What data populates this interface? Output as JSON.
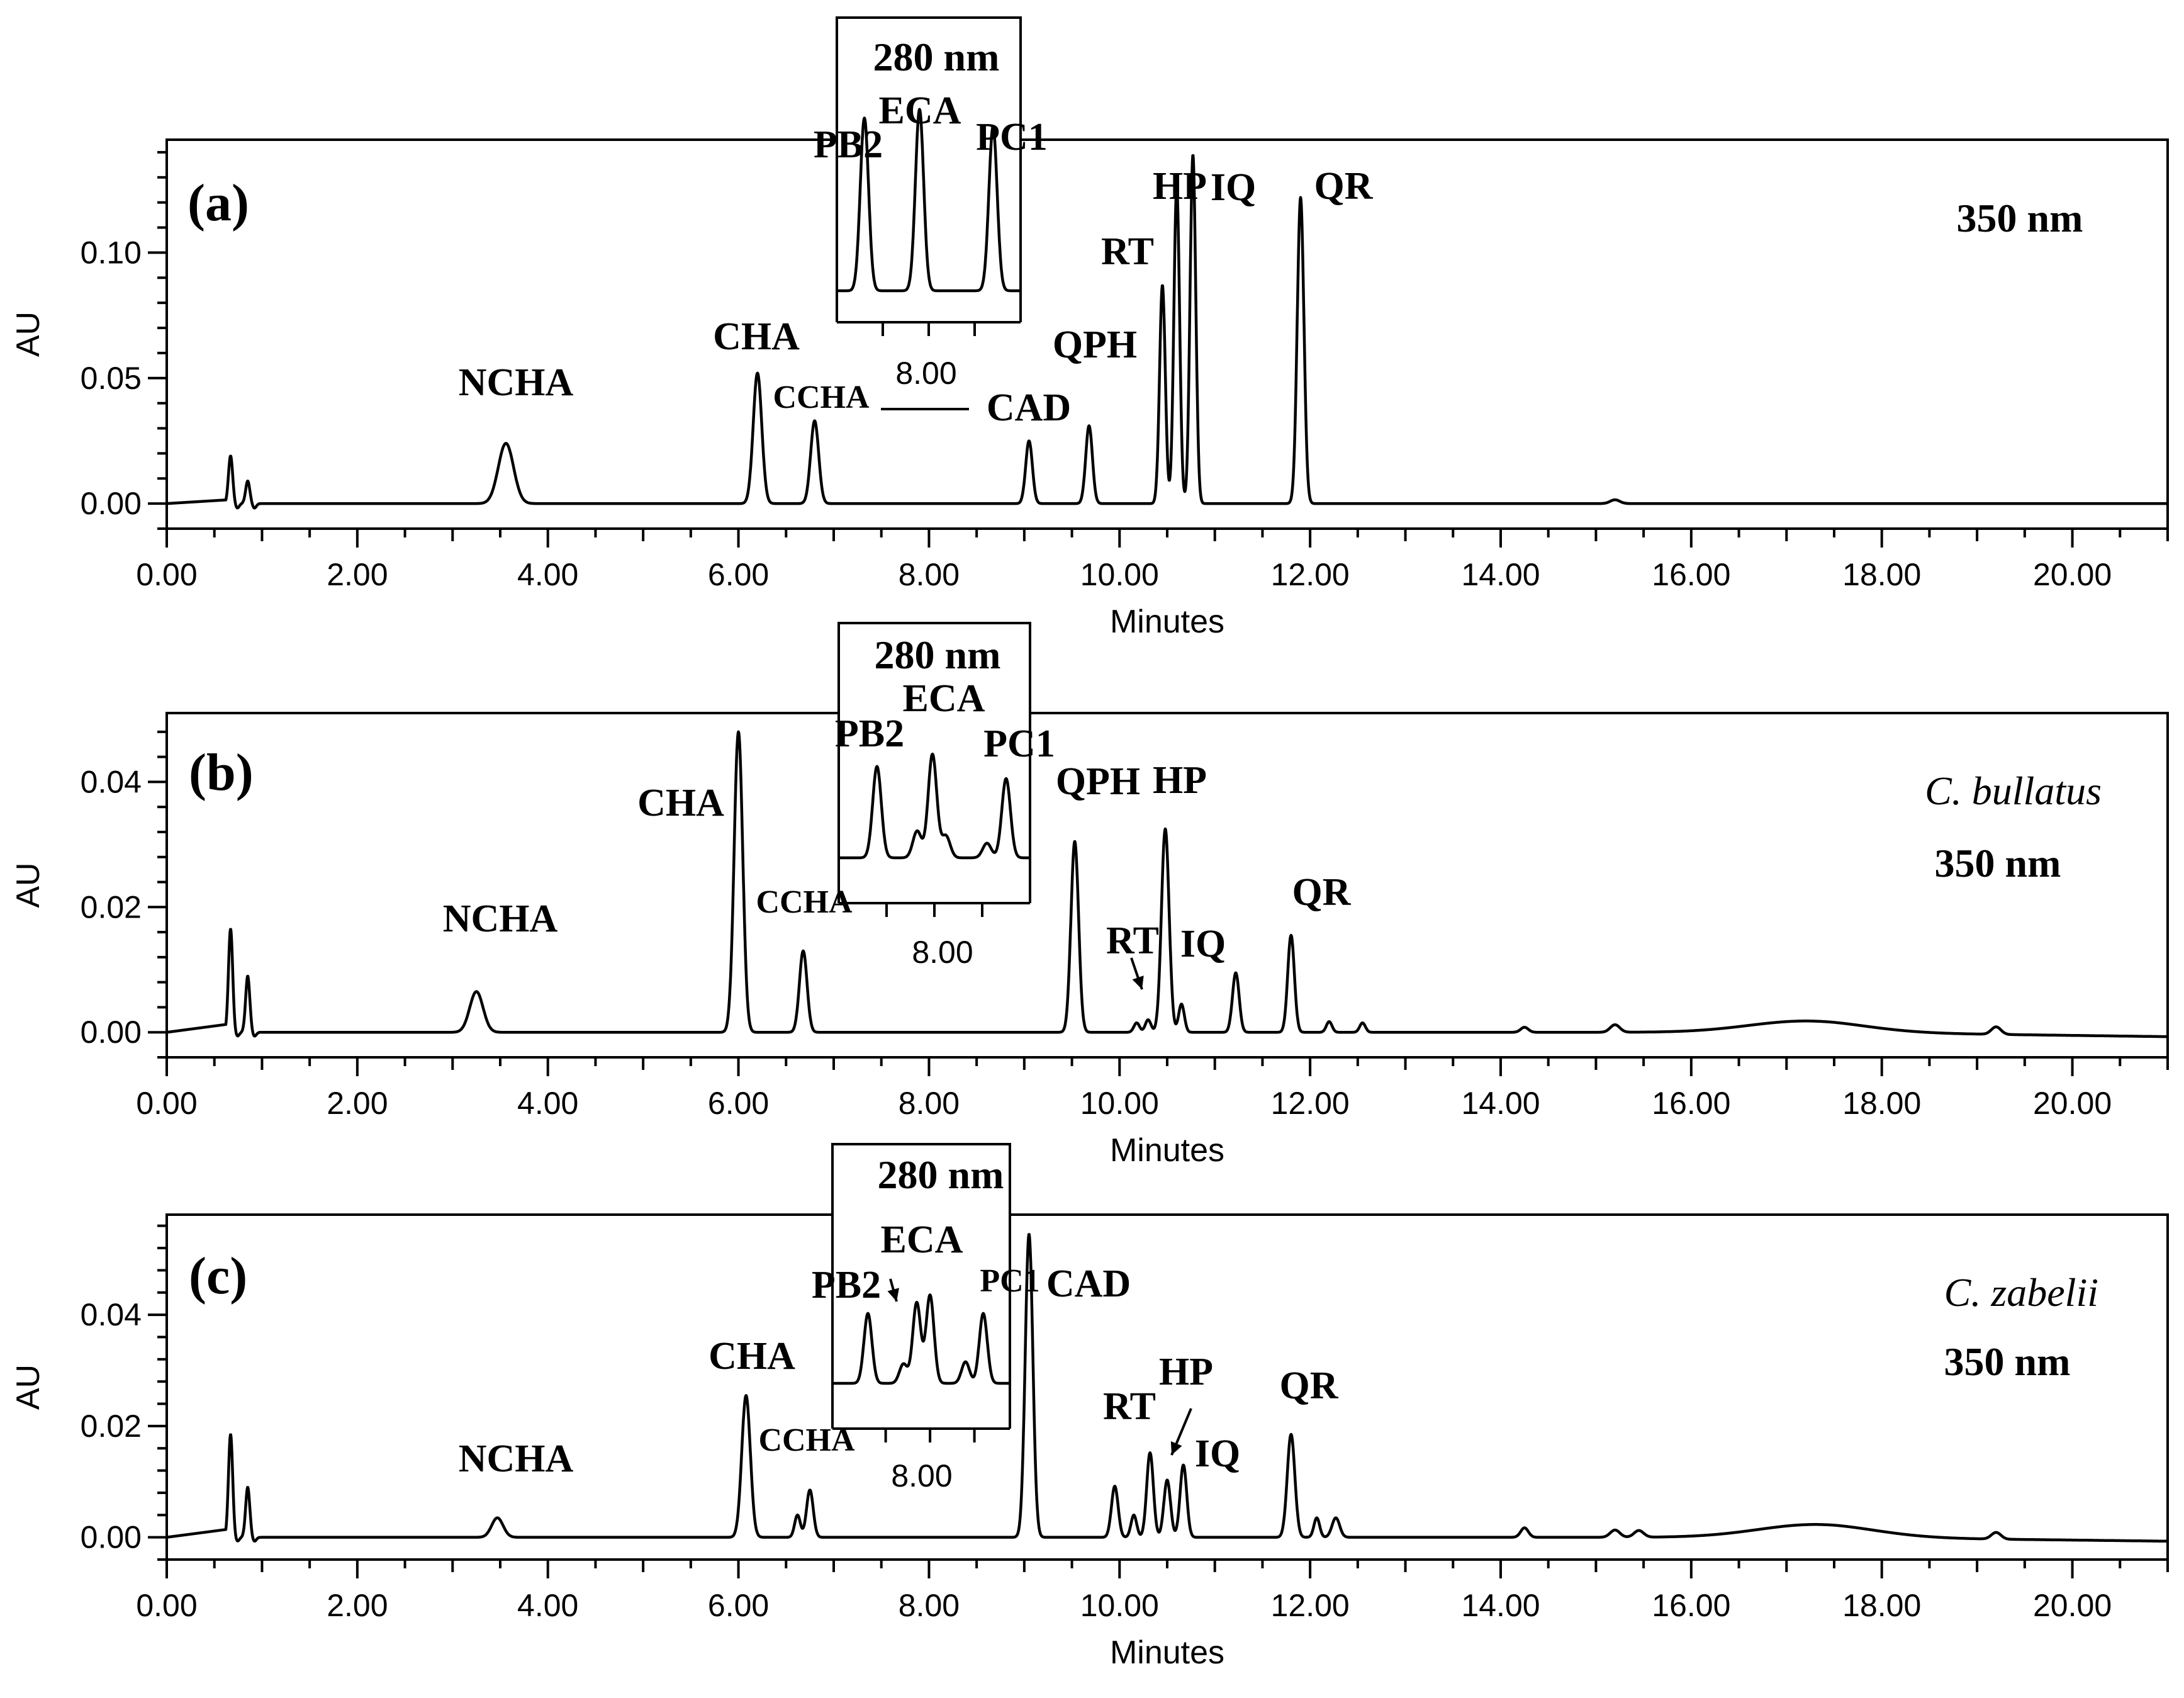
{
  "chart_data": [
    {
      "type": "line",
      "panel_label": "(a)",
      "wavelength": "350 nm",
      "species": "",
      "xlabel": "Minutes",
      "ylabel": "AU",
      "xlim": [
        0,
        21
      ],
      "ylim": [
        -0.01,
        0.145
      ],
      "x_ticks": [
        "0.00",
        "2.00",
        "4.00",
        "6.00",
        "8.00",
        "10.00",
        "12.00",
        "14.00",
        "16.00",
        "18.00",
        "20.00"
      ],
      "y_ticks": [
        {
          "value": 0.0,
          "label": "0.00"
        },
        {
          "value": 0.05,
          "label": "0.05"
        },
        {
          "value": 0.1,
          "label": "0.10"
        }
      ],
      "peaks": [
        {
          "label": "",
          "rt": 0.67,
          "height": 0.019,
          "width": 0.022
        },
        {
          "label": "",
          "rt": 0.85,
          "height": 0.009,
          "width": 0.022
        },
        {
          "label": "NCHA",
          "rt": 3.56,
          "height": 0.024,
          "width": 0.08
        },
        {
          "label": "CHA",
          "rt": 6.2,
          "height": 0.052,
          "width": 0.045
        },
        {
          "label": "CCHA",
          "rt": 6.8,
          "height": 0.033,
          "width": 0.042
        },
        {
          "label": "CAD",
          "rt": 9.05,
          "height": 0.025,
          "width": 0.035
        },
        {
          "label": "QPH",
          "rt": 9.68,
          "height": 0.031,
          "width": 0.035
        },
        {
          "label": "RT",
          "rt": 10.45,
          "height": 0.087,
          "width": 0.03
        },
        {
          "label": "HP",
          "rt": 10.6,
          "height": 0.126,
          "width": 0.03
        },
        {
          "label": "IQ",
          "rt": 10.77,
          "height": 0.139,
          "width": 0.03
        },
        {
          "label": "QR",
          "rt": 11.9,
          "height": 0.122,
          "width": 0.035
        },
        {
          "label": "",
          "rt": 15.2,
          "height": 0.0015,
          "width": 0.05
        }
      ],
      "inset": {
        "wavelength": "280 nm",
        "x_tick_label": "8.00",
        "peaks": [
          {
            "label": "PB2",
            "rt": 7.3,
            "height": 1.0
          },
          {
            "label": "ECA",
            "rt": 7.9,
            "height": 1.05
          },
          {
            "label": "PC1",
            "rt": 8.7,
            "height": 0.95
          }
        ],
        "minor_peaks": [],
        "outside_labels": [
          "CCHA"
        ]
      }
    },
    {
      "type": "line",
      "panel_label": "(b)",
      "wavelength": "350 nm",
      "species": "C. bullatus",
      "xlabel": "Minutes",
      "ylabel": "AU",
      "xlim": [
        0,
        21
      ],
      "ylim": [
        -0.004,
        0.051
      ],
      "x_ticks": [
        "0.00",
        "2.00",
        "4.00",
        "6.00",
        "8.00",
        "10.00",
        "12.00",
        "14.00",
        "16.00",
        "18.00",
        "20.00"
      ],
      "y_ticks": [
        {
          "value": 0.0,
          "label": "0.00"
        },
        {
          "value": 0.02,
          "label": "0.02"
        },
        {
          "value": 0.04,
          "label": "0.04"
        }
      ],
      "peaks": [
        {
          "label": "",
          "rt": 0.67,
          "height": 0.0165,
          "width": 0.022
        },
        {
          "label": "",
          "rt": 0.85,
          "height": 0.009,
          "width": 0.022
        },
        {
          "label": "NCHA",
          "rt": 3.25,
          "height": 0.0065,
          "width": 0.07
        },
        {
          "label": "CHA",
          "rt": 6.0,
          "height": 0.048,
          "width": 0.045
        },
        {
          "label": "CCHA",
          "rt": 6.68,
          "height": 0.013,
          "width": 0.04
        },
        {
          "label": "QPH",
          "rt": 9.53,
          "height": 0.0305,
          "width": 0.04
        },
        {
          "label": "",
          "rt": 10.18,
          "height": 0.0015,
          "width": 0.03
        },
        {
          "label": "RT",
          "rt": 10.3,
          "height": 0.002,
          "width": 0.03
        },
        {
          "label": "HP",
          "rt": 10.48,
          "height": 0.0325,
          "width": 0.04
        },
        {
          "label": "IQ",
          "rt": 10.65,
          "height": 0.0045,
          "width": 0.03
        },
        {
          "label": "",
          "rt": 11.22,
          "height": 0.0095,
          "width": 0.035
        },
        {
          "label": "QR",
          "rt": 11.8,
          "height": 0.0155,
          "width": 0.035
        },
        {
          "label": "",
          "rt": 12.2,
          "height": 0.0017,
          "width": 0.03
        },
        {
          "label": "",
          "rt": 12.55,
          "height": 0.0015,
          "width": 0.03
        },
        {
          "label": "",
          "rt": 14.25,
          "height": 0.0008,
          "width": 0.04
        },
        {
          "label": "",
          "rt": 15.2,
          "height": 0.0012,
          "width": 0.05
        },
        {
          "label": "",
          "rt": 17.2,
          "height": 0.0018,
          "width": 0.6
        },
        {
          "label": "",
          "rt": 19.2,
          "height": 0.0012,
          "width": 0.05
        }
      ],
      "inset": {
        "wavelength": "280 nm",
        "x_tick_label": "8.00",
        "peaks": [
          {
            "label": "PB2",
            "rt": 7.4,
            "height": 0.75
          },
          {
            "label": "ECA",
            "rt": 7.98,
            "height": 0.85
          },
          {
            "label": "PC1",
            "rt": 8.75,
            "height": 0.65
          }
        ],
        "minor_peaks": [
          {
            "rt": 7.82,
            "height": 0.22
          },
          {
            "rt": 8.12,
            "height": 0.18
          },
          {
            "rt": 8.55,
            "height": 0.12
          }
        ],
        "outside_labels": [
          "CCHA"
        ]
      }
    },
    {
      "type": "line",
      "panel_label": "(c)",
      "wavelength": "350 nm",
      "species": "C. zabelii",
      "xlabel": "Minutes",
      "ylabel": "AU",
      "xlim": [
        0,
        21
      ],
      "ylim": [
        -0.004,
        0.058
      ],
      "x_ticks": [
        "0.00",
        "2.00",
        "4.00",
        "6.00",
        "8.00",
        "10.00",
        "12.00",
        "14.00",
        "16.00",
        "18.00",
        "20.00"
      ],
      "y_ticks": [
        {
          "value": 0.0,
          "label": "0.00"
        },
        {
          "value": 0.02,
          "label": "0.02"
        },
        {
          "value": 0.04,
          "label": "0.04"
        }
      ],
      "peaks": [
        {
          "label": "",
          "rt": 0.67,
          "height": 0.0185,
          "width": 0.022
        },
        {
          "label": "",
          "rt": 0.85,
          "height": 0.009,
          "width": 0.022
        },
        {
          "label": "NCHA",
          "rt": 3.47,
          "height": 0.0035,
          "width": 0.06
        },
        {
          "label": "CHA",
          "rt": 6.08,
          "height": 0.0255,
          "width": 0.045
        },
        {
          "label": "",
          "rt": 6.62,
          "height": 0.004,
          "width": 0.03
        },
        {
          "label": "CCHA",
          "rt": 6.75,
          "height": 0.0085,
          "width": 0.035
        },
        {
          "label": "CAD",
          "rt": 9.05,
          "height": 0.0545,
          "width": 0.04
        },
        {
          "label": "RT",
          "rt": 9.95,
          "height": 0.0092,
          "width": 0.035
        },
        {
          "label": "",
          "rt": 10.15,
          "height": 0.004,
          "width": 0.03
        },
        {
          "label": "",
          "rt": 10.32,
          "height": 0.0152,
          "width": 0.035
        },
        {
          "label": "HP",
          "rt": 10.5,
          "height": 0.0103,
          "width": 0.035
        },
        {
          "label": "IQ",
          "rt": 10.67,
          "height": 0.013,
          "width": 0.035
        },
        {
          "label": "QR",
          "rt": 11.8,
          "height": 0.0185,
          "width": 0.04
        },
        {
          "label": "",
          "rt": 12.07,
          "height": 0.0035,
          "width": 0.03
        },
        {
          "label": "",
          "rt": 12.27,
          "height": 0.0035,
          "width": 0.04
        },
        {
          "label": "",
          "rt": 14.25,
          "height": 0.0017,
          "width": 0.04
        },
        {
          "label": "",
          "rt": 15.2,
          "height": 0.0013,
          "width": 0.05
        },
        {
          "label": "",
          "rt": 15.45,
          "height": 0.0012,
          "width": 0.05
        },
        {
          "label": "",
          "rt": 17.3,
          "height": 0.0023,
          "width": 0.6
        },
        {
          "label": "",
          "rt": 19.2,
          "height": 0.0012,
          "width": 0.05
        }
      ],
      "inset": {
        "wavelength": "280 nm",
        "x_tick_label": "8.00",
        "peaks": [
          {
            "label": "PB2",
            "rt": 7.3,
            "height": 0.65
          },
          {
            "label": "ECA",
            "rt": 7.85,
            "height": 0.75
          },
          {
            "label": "PC1",
            "rt": 8.6,
            "height": 0.65
          }
        ],
        "minor_peaks": [
          {
            "rt": 7.7,
            "height": 0.18
          },
          {
            "rt": 8.0,
            "height": 0.82
          },
          {
            "rt": 8.4,
            "height": 0.2
          }
        ],
        "outside_labels": [
          "CCHA"
        ]
      }
    }
  ]
}
